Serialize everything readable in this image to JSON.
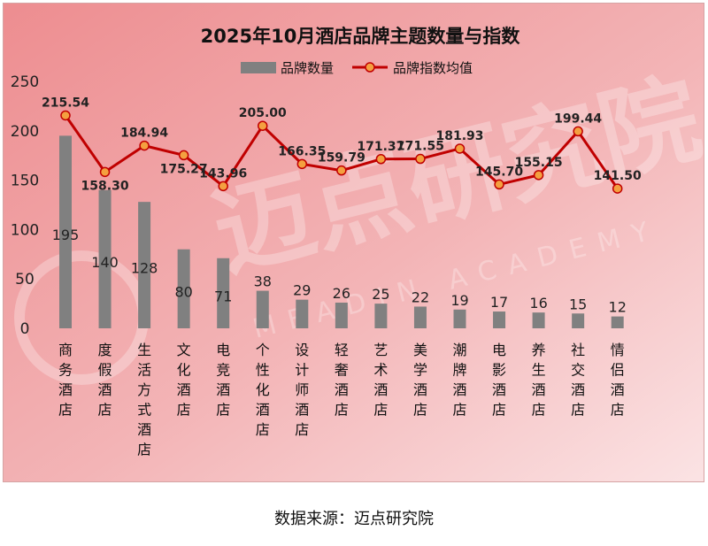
{
  "chart_data": {
    "type": "bar+line",
    "title": "2025年10月酒店品牌主题数量与指数",
    "categories": [
      "商务酒店",
      "度假酒店",
      "生活方式酒店",
      "文化酒店",
      "电竞酒店",
      "个性化酒店",
      "设计师酒店",
      "轻奢酒店",
      "艺术酒店",
      "美学酒店",
      "潮牌酒店",
      "电影酒店",
      "养生酒店",
      "社交酒店",
      "情侣酒店"
    ],
    "series": [
      {
        "name": "品牌数量",
        "kind": "bar",
        "color": "#808080",
        "values": [
          195,
          140,
          128,
          80,
          71,
          38,
          29,
          26,
          25,
          22,
          19,
          17,
          16,
          15,
          12
        ],
        "labels": [
          "195",
          "140",
          "128",
          "80",
          "71",
          "38",
          "29",
          "26",
          "25",
          "22",
          "19",
          "17",
          "16",
          "15",
          "12"
        ]
      },
      {
        "name": "品牌指数均值",
        "kind": "line",
        "color": "#c00000",
        "marker": "#f4a040",
        "values": [
          215.54,
          158.3,
          184.94,
          175.27,
          143.96,
          205.0,
          166.35,
          159.79,
          171.37,
          171.55,
          181.93,
          145.7,
          155.15,
          199.44,
          141.5
        ],
        "labels": [
          "215.54",
          "158.30",
          "184.94",
          "175.27",
          "143.96",
          "205.00",
          "166.35",
          "159.79",
          "171.37",
          "171.55",
          "181.93",
          "145.70",
          "155.15",
          "199.44",
          "141.50"
        ]
      }
    ],
    "yticks": [
      0,
      50,
      100,
      150,
      200,
      250
    ],
    "ylim": [
      0,
      250
    ],
    "legend": "top-center",
    "grid": false
  },
  "watermark": {
    "text": "迈点研究院",
    "sub": "MEADIN ACADEMY"
  },
  "source_text": "数据来源：迈点研究院"
}
